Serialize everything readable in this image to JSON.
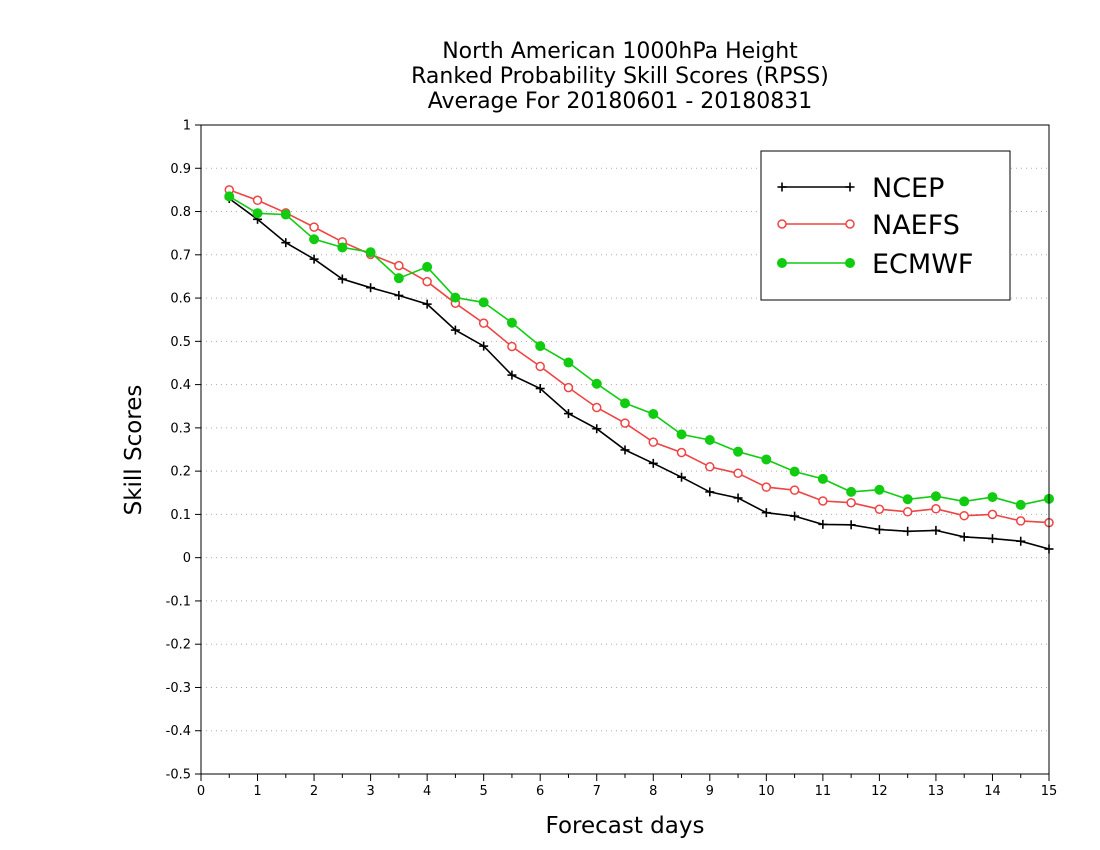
{
  "chart_data": {
    "type": "line",
    "title_lines": [
      "North American 1000hPa Height",
      "Ranked Probability Skill Scores (RPSS)",
      "Average For 20180601 - 20180831"
    ],
    "xlabel": "Forecast days",
    "ylabel": "Skill Scores",
    "xlim": [
      0,
      15
    ],
    "ylim": [
      -0.5,
      1
    ],
    "x_ticks": [
      0,
      1,
      2,
      3,
      4,
      5,
      6,
      7,
      8,
      9,
      10,
      11,
      12,
      13,
      14,
      15
    ],
    "x_tick_labels": [
      "0",
      "1",
      "2",
      "3",
      "4",
      "5",
      "6",
      "7",
      "8",
      "9",
      "10",
      "11",
      "12",
      "13",
      "14",
      "15"
    ],
    "y_ticks": [
      -0.5,
      -0.4,
      -0.3,
      -0.2,
      -0.1,
      0,
      0.1,
      0.2,
      0.3,
      0.4,
      0.5,
      0.6,
      0.7,
      0.8,
      0.9,
      1
    ],
    "y_tick_labels": [
      "-0.5",
      "-0.4",
      "-0.3",
      "-0.2",
      "-0.1",
      "0",
      "0.1",
      "0.2",
      "0.3",
      "0.4",
      "0.5",
      "0.6",
      "0.7",
      "0.8",
      "0.9",
      "1"
    ],
    "grid": "horizontal dotted",
    "legend_position": "top-right",
    "x": [
      0.5,
      1,
      1.5,
      2,
      2.5,
      3,
      3.5,
      4,
      4.5,
      5,
      5.5,
      6,
      6.5,
      7,
      7.5,
      8,
      8.5,
      9,
      9.5,
      10,
      10.5,
      11,
      11.5,
      12,
      12.5,
      13,
      13.5,
      14,
      14.5,
      15
    ],
    "series": [
      {
        "name": "NCEP",
        "color": "#000000",
        "marker": "plus",
        "values": [
          0.83,
          0.782,
          0.728,
          0.69,
          0.644,
          0.624,
          0.606,
          0.586,
          0.526,
          0.489,
          0.422,
          0.391,
          0.333,
          0.298,
          0.249,
          0.218,
          0.186,
          0.152,
          0.138,
          0.104,
          0.096,
          0.077,
          0.076,
          0.065,
          0.061,
          0.063,
          0.048,
          0.044,
          0.038,
          0.02
        ]
      },
      {
        "name": "NAEFS",
        "color": "#ee4444",
        "marker": "open-circle",
        "values": [
          0.85,
          0.826,
          0.797,
          0.764,
          0.73,
          0.701,
          0.675,
          0.638,
          0.588,
          0.542,
          0.488,
          0.442,
          0.393,
          0.347,
          0.311,
          0.267,
          0.243,
          0.21,
          0.195,
          0.163,
          0.156,
          0.131,
          0.127,
          0.112,
          0.106,
          0.113,
          0.097,
          0.1,
          0.085,
          0.081
        ]
      },
      {
        "name": "ECMWF",
        "color": "#11cc11",
        "marker": "filled-circle",
        "values": [
          0.835,
          0.796,
          0.793,
          0.736,
          0.717,
          0.706,
          0.646,
          0.672,
          0.601,
          0.59,
          0.543,
          0.489,
          0.451,
          0.402,
          0.357,
          0.332,
          0.285,
          0.272,
          0.245,
          0.227,
          0.199,
          0.182,
          0.152,
          0.157,
          0.135,
          0.142,
          0.13,
          0.14,
          0.122,
          0.136
        ]
      }
    ]
  }
}
